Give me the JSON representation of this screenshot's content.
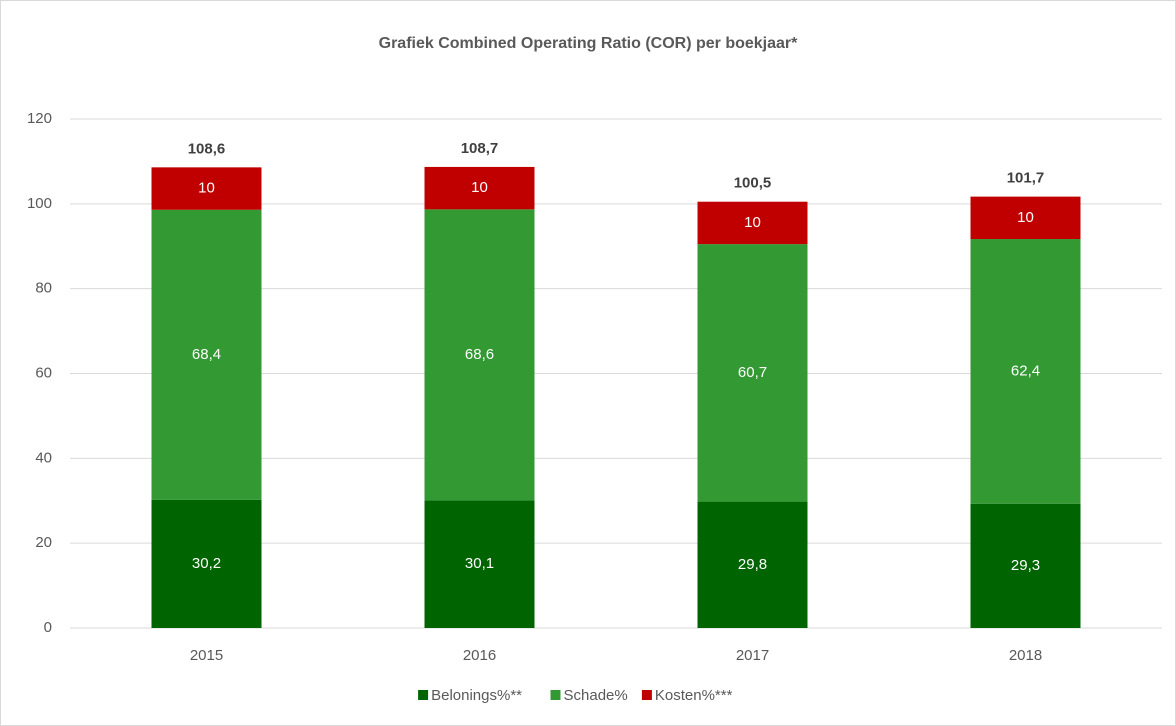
{
  "chart_data": {
    "type": "stacked_bar",
    "title": "Grafiek Combined Operating Ratio (COR) per boekjaar*",
    "categories": [
      "2015",
      "2016",
      "2017",
      "2018"
    ],
    "series": [
      {
        "name": "Belonings%**",
        "color": "#006400",
        "values": [
          30.2,
          30.1,
          29.8,
          29.3
        ],
        "value_labels": [
          "30,2",
          "30,1",
          "29,8",
          "29,3"
        ]
      },
      {
        "name": "Schade%",
        "color": "#339933",
        "values": [
          68.4,
          68.6,
          60.7,
          62.4
        ],
        "value_labels": [
          "68,4",
          "68,6",
          "60,7",
          "62,4"
        ]
      },
      {
        "name": "Kosten%***",
        "color": "#c00000",
        "values": [
          10,
          10,
          10,
          10
        ],
        "value_labels": [
          "10",
          "10",
          "10",
          "10"
        ]
      }
    ],
    "totals": [
      108.6,
      108.7,
      100.5,
      101.7
    ],
    "total_labels": [
      "108,6",
      "108,7",
      "100,5",
      "101,7"
    ],
    "ylim": [
      0,
      120
    ],
    "yticks": [
      0,
      20,
      40,
      60,
      80,
      100,
      120
    ],
    "grid": true,
    "legend": "bottom"
  }
}
